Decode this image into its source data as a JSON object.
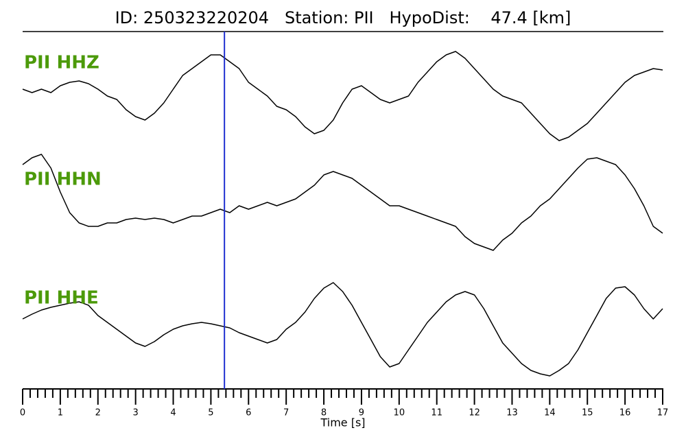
{
  "chart_data": {
    "type": "seismogram",
    "title": "ID: 250323220204   Station: PII   HypoDist:    47.4 [km]",
    "xlabel": "Time [s]",
    "xlim": [
      0,
      17
    ],
    "xticks": [
      0,
      1,
      2,
      3,
      4,
      5,
      6,
      7,
      8,
      9,
      10,
      11,
      12,
      13,
      14,
      15,
      16,
      17
    ],
    "xminorticks": [
      0.2,
      0.4,
      0.6,
      0.8,
      1.2,
      1.4,
      1.6,
      1.8,
      2.2,
      2.4,
      2.6,
      2.8,
      3.2,
      3.4,
      3.6,
      3.8,
      4.2,
      4.4,
      4.6,
      4.8,
      5.2,
      5.4,
      5.6,
      5.8,
      6.2,
      6.4,
      6.6,
      6.8,
      7.2,
      7.4,
      7.6,
      7.8,
      8.2,
      8.4,
      8.6,
      8.8,
      9.2,
      9.4,
      9.6,
      9.8,
      10.2,
      10.4,
      10.6,
      10.8,
      11.2,
      11.4,
      11.6,
      11.8,
      12.2,
      12.4,
      12.6,
      12.8,
      13.2,
      13.4,
      13.6,
      13.8,
      14.2,
      14.4,
      14.6,
      14.8,
      15.2,
      15.4,
      15.6,
      15.8,
      16.2,
      16.4,
      16.6,
      16.8
    ],
    "ylim": [
      -85,
      85
    ],
    "pick": {
      "x": 5.36,
      "color": "#1f2fd0"
    },
    "label_color": "#4c9a0a",
    "x": [
      0,
      0.25,
      0.5,
      0.75,
      1,
      1.25,
      1.5,
      1.75,
      2,
      2.25,
      2.5,
      2.75,
      3,
      3.25,
      3.5,
      3.75,
      4,
      4.25,
      4.5,
      4.75,
      5,
      5.25,
      5.5,
      5.75,
      6,
      6.25,
      6.5,
      6.75,
      7,
      7.25,
      7.5,
      7.75,
      8,
      8.25,
      8.5,
      8.75,
      9,
      9.25,
      9.5,
      9.75,
      10,
      10.25,
      10.5,
      10.75,
      11,
      11.25,
      11.5,
      11.75,
      12,
      12.25,
      12.5,
      12.75,
      13,
      13.25,
      13.5,
      13.75,
      14,
      14.25,
      14.5,
      14.75,
      15,
      15.25,
      15.5,
      15.75,
      16,
      16.25,
      16.5,
      16.75,
      17
    ],
    "series": [
      {
        "name": "PII HHZ",
        "color": "#000000",
        "values": [
          5,
          0,
          5,
          0,
          10,
          15,
          17,
          13,
          5,
          -5,
          -10,
          -25,
          -35,
          -40,
          -30,
          -15,
          5,
          25,
          35,
          45,
          55,
          55,
          45,
          35,
          15,
          5,
          -5,
          -20,
          -25,
          -35,
          -50,
          -60,
          -55,
          -40,
          -15,
          5,
          10,
          0,
          -10,
          -15,
          -10,
          -5,
          15,
          30,
          45,
          55,
          60,
          50,
          35,
          20,
          5,
          -5,
          -10,
          -15,
          -30,
          -45,
          -60,
          -70,
          -65,
          -55,
          -45,
          -30,
          -15,
          0,
          15,
          25,
          30,
          35,
          33
        ]
      },
      {
        "name": "PII HHN",
        "color": "#000000",
        "values": [
          65,
          75,
          80,
          60,
          25,
          -5,
          -20,
          -25,
          -25,
          -20,
          -20,
          -15,
          -13,
          -15,
          -13,
          -15,
          -20,
          -15,
          -10,
          -10,
          -5,
          0,
          -5,
          5,
          0,
          5,
          10,
          5,
          10,
          15,
          25,
          35,
          50,
          55,
          50,
          45,
          35,
          25,
          15,
          5,
          5,
          0,
          -5,
          -10,
          -15,
          -20,
          -25,
          -40,
          -50,
          -55,
          -60,
          -45,
          -35,
          -20,
          -10,
          5,
          15,
          30,
          45,
          60,
          73,
          75,
          70,
          65,
          50,
          30,
          5,
          -25,
          -35
        ]
      },
      {
        "name": "PII HHE",
        "color": "#000000",
        "values": [
          13,
          20,
          26,
          30,
          33,
          36,
          38,
          33,
          18,
          8,
          -2,
          -12,
          -22,
          -27,
          -20,
          -10,
          -2,
          3,
          6,
          8,
          6,
          3,
          0,
          -7,
          -12,
          -17,
          -22,
          -17,
          -2,
          8,
          23,
          43,
          58,
          66,
          53,
          33,
          8,
          -17,
          -42,
          -57,
          -52,
          -32,
          -12,
          8,
          23,
          38,
          48,
          53,
          48,
          28,
          3,
          -22,
          -37,
          -52,
          -62,
          -67,
          -70,
          -62,
          -52,
          -32,
          -7,
          18,
          43,
          58,
          60,
          48,
          28,
          13,
          28
        ]
      }
    ]
  }
}
